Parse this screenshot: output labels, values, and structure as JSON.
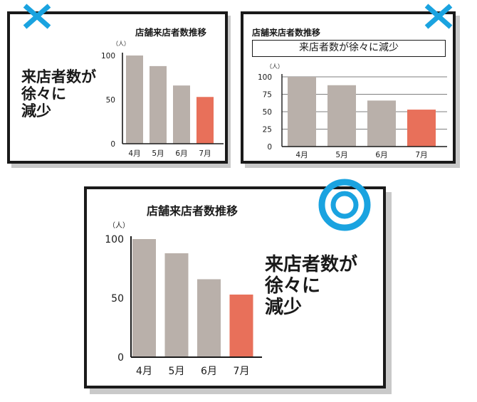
{
  "colors": {
    "bar_gray": "#b9b0aa",
    "bar_highlight": "#e8705a",
    "mark_blue": "#1aa3e0",
    "frame": "#1a1a1a"
  },
  "panels": [
    {
      "verdict_icon": "cross-icon",
      "message_lines": [
        "来店者数が",
        "徐々に",
        "減少"
      ],
      "chart_data": {
        "type": "bar",
        "title": "店舗来店者数推移",
        "unit_label": "（人）",
        "categories": [
          "4月",
          "5月",
          "6月",
          "7月"
        ],
        "values": [
          100,
          88,
          66,
          53
        ],
        "highlight_index": 3,
        "yticks": [
          0,
          50,
          100
        ],
        "ylim": [
          0,
          100
        ],
        "grid": false
      }
    },
    {
      "verdict_icon": "cross-icon",
      "message_box": "来店者数が徐々に減少",
      "chart_data": {
        "type": "bar",
        "title": "店舗来店者数推移",
        "unit_label": "（人）",
        "categories": [
          "4月",
          "5月",
          "6月",
          "7月"
        ],
        "values": [
          100,
          88,
          66,
          53
        ],
        "highlight_index": 3,
        "yticks": [
          0,
          25,
          50,
          75,
          100
        ],
        "ylim": [
          0,
          100
        ],
        "grid": true
      }
    },
    {
      "verdict_icon": "double-circle-icon",
      "message_lines": [
        "来店者数が",
        "徐々に",
        "減少"
      ],
      "chart_data": {
        "type": "bar",
        "title": "店舗来店者数推移",
        "unit_label": "（人）",
        "categories": [
          "4月",
          "5月",
          "6月",
          "7月"
        ],
        "values": [
          100,
          88,
          66,
          53
        ],
        "highlight_index": 3,
        "yticks": [
          0,
          50,
          100
        ],
        "ylim": [
          0,
          100
        ],
        "grid": false
      }
    }
  ]
}
